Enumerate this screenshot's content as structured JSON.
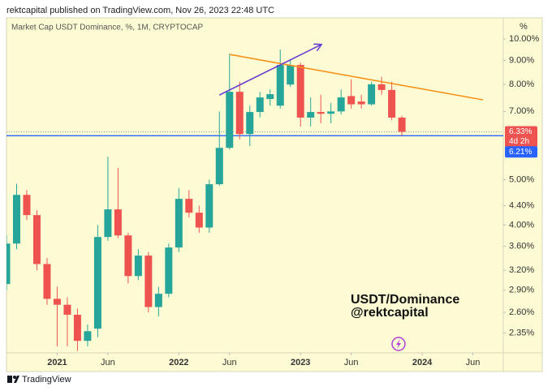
{
  "header": "rektcapital published on TradingView.com, Nov 26, 2023 22:48 UTC",
  "footer": "TradingView",
  "chart_data": {
    "type": "candlestick",
    "title": "Market Cap USDT Dominance, %, 1M, CRYPTOCAP",
    "y_unit": "%",
    "annotations": [
      "USDT/Dominance",
      "@rektcapital"
    ],
    "up_color": "#26a69a",
    "down_color": "#ef5350",
    "x": [
      "2020-08",
      "2020-09",
      "2020-10",
      "2020-11",
      "2020-12",
      "2021-01",
      "2021-02",
      "2021-03",
      "2021-04",
      "2021-05",
      "2021-06",
      "2021-07",
      "2021-08",
      "2021-09",
      "2021-10",
      "2021-11",
      "2021-12",
      "2022-01",
      "2022-02",
      "2022-03",
      "2022-04",
      "2022-05",
      "2022-06",
      "2022-07",
      "2022-08",
      "2022-09",
      "2022-10",
      "2022-11",
      "2022-12",
      "2023-01",
      "2023-02",
      "2023-03",
      "2023-04",
      "2023-05",
      "2023-06",
      "2023-07",
      "2023-08",
      "2023-09",
      "2023-10",
      "2023-11"
    ],
    "open": [
      2.99,
      3.65,
      4.64,
      4.2,
      3.3,
      2.78,
      2.7,
      2.57,
      2.26,
      2.4,
      3.77,
      4.32,
      3.8,
      3.11,
      3.44,
      2.67,
      2.85,
      3.58,
      4.55,
      4.25,
      3.95,
      4.89,
      5.85,
      7.71,
      6.26,
      6.98,
      7.44,
      7.2,
      7.99,
      8.8,
      6.79,
      6.98,
      6.92,
      7.0,
      7.55,
      7.35,
      7.25,
      8.0,
      7.78,
      6.79
    ],
    "high": [
      3.8,
      4.9,
      4.75,
      4.3,
      3.4,
      2.95,
      2.8,
      2.65,
      2.45,
      4.0,
      5.6,
      5.3,
      3.85,
      3.55,
      3.5,
      2.95,
      3.65,
      4.8,
      4.75,
      4.4,
      5.0,
      7.0,
      9.3,
      8.1,
      7.2,
      7.7,
      7.8,
      9.5,
      9.0,
      8.9,
      7.5,
      7.6,
      7.3,
      7.8,
      8.2,
      7.6,
      8.1,
      8.3,
      8.1,
      6.85
    ],
    "low": [
      2.9,
      3.55,
      4.1,
      3.2,
      2.7,
      2.2,
      2.2,
      2.15,
      2.2,
      2.3,
      3.7,
      3.75,
      3.0,
      3.05,
      2.6,
      2.55,
      2.8,
      3.5,
      4.15,
      3.85,
      3.85,
      4.85,
      5.8,
      6.1,
      5.9,
      6.8,
      7.2,
      7.1,
      7.9,
      6.5,
      6.5,
      6.6,
      6.6,
      6.9,
      7.1,
      7.1,
      7.2,
      7.6,
      6.7,
      6.21
    ],
    "close": [
      3.65,
      4.64,
      4.2,
      3.3,
      2.78,
      2.7,
      2.57,
      2.26,
      2.37,
      3.77,
      4.32,
      3.8,
      3.11,
      3.44,
      2.67,
      2.85,
      3.58,
      4.55,
      4.25,
      3.95,
      4.89,
      5.85,
      7.71,
      6.26,
      6.98,
      7.5,
      7.62,
      8.8,
      8.8,
      6.79,
      6.98,
      6.92,
      7.0,
      7.5,
      7.25,
      7.25,
      8.0,
      7.78,
      6.79,
      6.33
    ],
    "xlim": [
      "2020-08",
      "2024-09"
    ],
    "xticks": [
      {
        "value": "2021-01",
        "label": "2021"
      },
      {
        "value": "2021-06",
        "label": "Jun"
      },
      {
        "value": "2022-01",
        "label": "2022"
      },
      {
        "value": "2022-06",
        "label": "Jun"
      },
      {
        "value": "2023-01",
        "label": "2023"
      },
      {
        "value": "2023-06",
        "label": "Jun"
      },
      {
        "value": "2024-01",
        "label": "2024"
      },
      {
        "value": "2024-06",
        "label": "Jun"
      }
    ],
    "ylim": [
      2.13,
      11.1
    ],
    "log_scale": true,
    "grid": false,
    "yticks": [
      {
        "value": 10,
        "label": "10.00%"
      },
      {
        "value": 9,
        "label": "9.00%"
      },
      {
        "value": 8,
        "label": "8.00%"
      },
      {
        "value": 7,
        "label": "7.00%"
      },
      {
        "value": 5,
        "label": "5.00%"
      },
      {
        "value": 4.4,
        "label": "4.40%"
      },
      {
        "value": 4,
        "label": "4.00%"
      },
      {
        "value": 3.6,
        "label": "3.60%"
      },
      {
        "value": 3.2,
        "label": "3.20%"
      },
      {
        "value": 2.9,
        "label": "2.90%"
      },
      {
        "value": 2.6,
        "label": "2.60%"
      },
      {
        "value": 2.35,
        "label": "2.35%"
      }
    ],
    "current_price": {
      "value": 6.33,
      "label": "6.33%",
      "countdown": "4d 2h",
      "color": "#ef5350"
    },
    "price_line": {
      "value": 6.21,
      "label": "6.21%",
      "color": "#2962ff"
    },
    "trendlines": [
      {
        "color": "#f7931a",
        "points": [
          {
            "x": "2022-06",
            "y": 9.27
          },
          {
            "x": "2024-07",
            "y": 7.41
          }
        ]
      },
      {
        "color": "#6a3fd1",
        "arrow": true,
        "points": [
          {
            "x": "2022-05",
            "y": 7.59
          },
          {
            "x": "2023-03",
            "y": 9.72
          }
        ]
      }
    ]
  }
}
